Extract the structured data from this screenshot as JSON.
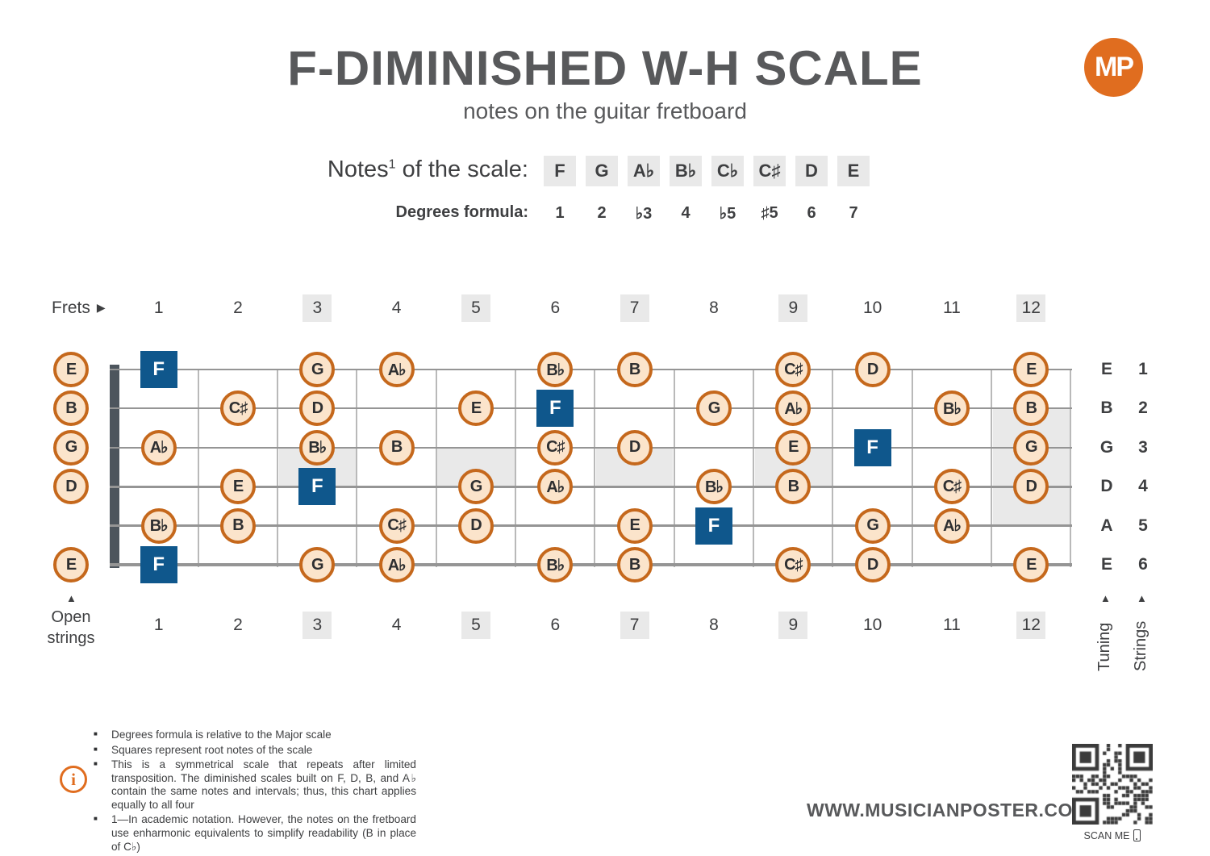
{
  "colors": {
    "orange": "#e06d1f",
    "circle-fill": "#fbe4cb",
    "circle-border": "#c5681c",
    "root-blue": "#0f578c",
    "box-gray": "#e9e9e9",
    "ink": "#3e3f41",
    "title-gray": "#58595b",
    "string-gray": "#959595",
    "fretwire-gray": "#b9b9b9",
    "nut-gray": "#4d555d"
  },
  "icons": {
    "frets_arrow": "▶",
    "up_arrow": "▲",
    "info": "i"
  },
  "header": {
    "title": "F-DIMINISHED W-H SCALE",
    "subtitle": "notes on the guitar fretboard",
    "logo_text": "MP"
  },
  "scale": {
    "notes_label_prefix": "Notes",
    "notes_label_sup": "1",
    "notes_label_suffix": " of the scale:",
    "degrees_label": "Degrees formula:",
    "notes": [
      "F",
      "G",
      "A♭",
      "B♭",
      "C♭",
      "C♯",
      "D",
      "E"
    ],
    "degrees": [
      "1",
      "2",
      "♭3",
      "4",
      "♭5",
      "♯5",
      "6",
      "7"
    ]
  },
  "fretboard": {
    "frets_label": "Frets",
    "fret_numbers": [
      "1",
      "2",
      "3",
      "4",
      "5",
      "6",
      "7",
      "8",
      "9",
      "10",
      "11",
      "12"
    ],
    "highlighted_frets": [
      3,
      5,
      7,
      9,
      12
    ],
    "single_inlay_frets": [
      3,
      5,
      7,
      9
    ],
    "double_inlay_fret": 12,
    "open_strings_label_line1": "Open",
    "open_strings_label_line2": "strings",
    "tuning_label": "Tuning",
    "strings_label": "Strings",
    "strings": [
      {
        "number": "1",
        "tuning": "E",
        "open_note": "E",
        "notes": [
          {
            "fret": 1,
            "note": "F",
            "root": true
          },
          {
            "fret": 3,
            "note": "G"
          },
          {
            "fret": 4,
            "note": "A♭"
          },
          {
            "fret": 6,
            "note": "B♭"
          },
          {
            "fret": 7,
            "note": "B"
          },
          {
            "fret": 9,
            "note": "C♯"
          },
          {
            "fret": 10,
            "note": "D"
          },
          {
            "fret": 12,
            "note": "E"
          }
        ]
      },
      {
        "number": "2",
        "tuning": "B",
        "open_note": "B",
        "notes": [
          {
            "fret": 2,
            "note": "C♯"
          },
          {
            "fret": 3,
            "note": "D"
          },
          {
            "fret": 5,
            "note": "E"
          },
          {
            "fret": 6,
            "note": "F",
            "root": true
          },
          {
            "fret": 8,
            "note": "G"
          },
          {
            "fret": 9,
            "note": "A♭"
          },
          {
            "fret": 11,
            "note": "B♭"
          },
          {
            "fret": 12,
            "note": "B"
          }
        ]
      },
      {
        "number": "3",
        "tuning": "G",
        "open_note": "G",
        "notes": [
          {
            "fret": 1,
            "note": "A♭"
          },
          {
            "fret": 3,
            "note": "B♭"
          },
          {
            "fret": 4,
            "note": "B"
          },
          {
            "fret": 6,
            "note": "C♯"
          },
          {
            "fret": 7,
            "note": "D"
          },
          {
            "fret": 9,
            "note": "E"
          },
          {
            "fret": 10,
            "note": "F",
            "root": true
          },
          {
            "fret": 12,
            "note": "G"
          }
        ]
      },
      {
        "number": "4",
        "tuning": "D",
        "open_note": "D",
        "notes": [
          {
            "fret": 2,
            "note": "E"
          },
          {
            "fret": 3,
            "note": "F",
            "root": true
          },
          {
            "fret": 5,
            "note": "G"
          },
          {
            "fret": 6,
            "note": "A♭"
          },
          {
            "fret": 8,
            "note": "B♭"
          },
          {
            "fret": 9,
            "note": "B"
          },
          {
            "fret": 11,
            "note": "C♯"
          },
          {
            "fret": 12,
            "note": "D"
          }
        ]
      },
      {
        "number": "5",
        "tuning": "A",
        "open_note": null,
        "notes": [
          {
            "fret": 1,
            "note": "B♭"
          },
          {
            "fret": 2,
            "note": "B"
          },
          {
            "fret": 4,
            "note": "C♯"
          },
          {
            "fret": 5,
            "note": "D"
          },
          {
            "fret": 7,
            "note": "E"
          },
          {
            "fret": 8,
            "note": "F",
            "root": true
          },
          {
            "fret": 10,
            "note": "G"
          },
          {
            "fret": 11,
            "note": "A♭"
          }
        ]
      },
      {
        "number": "6",
        "tuning": "E",
        "open_note": "E",
        "notes": [
          {
            "fret": 1,
            "note": "F",
            "root": true
          },
          {
            "fret": 3,
            "note": "G"
          },
          {
            "fret": 4,
            "note": "A♭"
          },
          {
            "fret": 6,
            "note": "B♭"
          },
          {
            "fret": 7,
            "note": "B"
          },
          {
            "fret": 9,
            "note": "C♯"
          },
          {
            "fret": 10,
            "note": "D"
          },
          {
            "fret": 12,
            "note": "E"
          }
        ]
      }
    ]
  },
  "footnotes": {
    "items": [
      "Degrees formula is relative to the Major scale",
      "Squares represent root notes of the scale",
      "This is a symmetrical scale that repeats after limited transposition. The diminished scales built on F, D, B, and A♭ contain the same notes and intervals; thus, this chart applies equally to all four",
      "1—In academic notation. However, the notes on the fretboard use enharmonic equivalents to simplify readability (B in place of C♭)"
    ]
  },
  "footer": {
    "website": "WWW.MUSICIANPOSTER.COM",
    "scan_me": "SCAN ME"
  }
}
